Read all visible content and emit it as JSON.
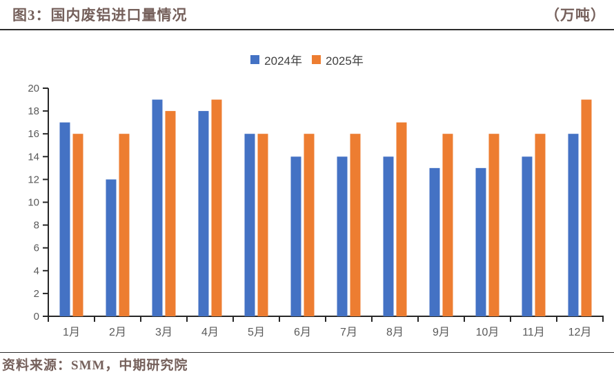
{
  "header": {
    "title": "图3：国内废铝进口量情况",
    "unit": "（万吨）"
  },
  "legend": {
    "items": [
      {
        "label": "2024年",
        "color": "#4472C4"
      },
      {
        "label": "2025年",
        "color": "#ED7D31"
      }
    ]
  },
  "chart_data": {
    "type": "bar",
    "title": "图3：国内废铝进口量情况",
    "unit_label": "（万吨）",
    "categories": [
      "1月",
      "2月",
      "3月",
      "4月",
      "5月",
      "6月",
      "7月",
      "8月",
      "9月",
      "10月",
      "11月",
      "12月"
    ],
    "series": [
      {
        "name": "2024年",
        "color": "#4472C4",
        "values": [
          17,
          12,
          19,
          18,
          16,
          14,
          14,
          14,
          13,
          13,
          14,
          16
        ]
      },
      {
        "name": "2025年",
        "color": "#ED7D31",
        "values": [
          16,
          16,
          18,
          19,
          16,
          16,
          16,
          17,
          16,
          16,
          16,
          19
        ]
      }
    ],
    "ylim": [
      0,
      20
    ],
    "ytick_step": 2,
    "grid": false,
    "legend_position": "top-center",
    "axis_color": "#262626",
    "tick_label_color": "#595959"
  },
  "footer": {
    "source": "资料来源：SMM，中期研究院"
  }
}
